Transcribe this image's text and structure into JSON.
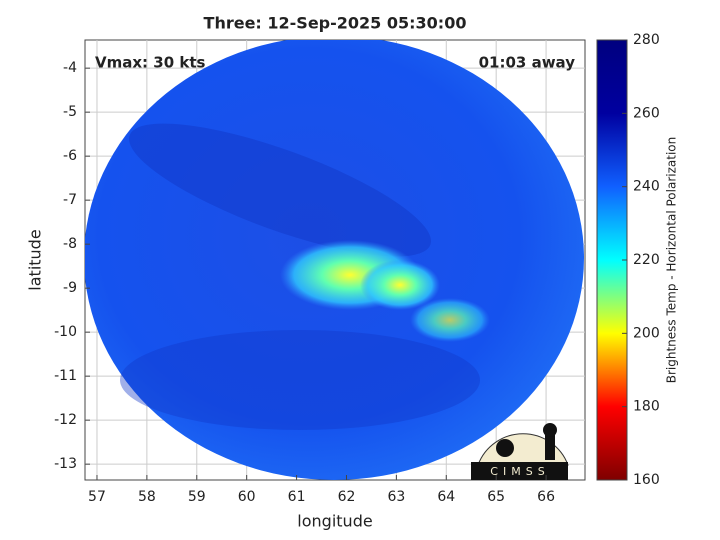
{
  "chart_data": {
    "type": "map",
    "title": "Three: 12-Sep-2025 05:30:00",
    "annotations": [
      "Vmax: 30 kts",
      "01:03 away"
    ],
    "x_label": "longitude",
    "y_label": "latitude",
    "xlim": [
      56.76,
      66.78
    ],
    "xticks": [
      57,
      58,
      59,
      60,
      61,
      62,
      63,
      64,
      65,
      66
    ],
    "ylim": [
      -13.36,
      -3.36
    ],
    "yticks": [
      -13,
      -12,
      -11,
      -10,
      -9,
      -8,
      -7,
      -6,
      -5,
      -4
    ],
    "grid": true,
    "colorbar": {
      "label": "Brightness Temp - Horizontal Polarization",
      "lim": [
        160,
        280
      ],
      "ticks": [
        160,
        180,
        200,
        220,
        240,
        260,
        280
      ],
      "colors": [
        "#7f0000",
        "#ff0000",
        "#ffff00",
        "#00ffff",
        "#1060ff",
        "#0000a0",
        "#00007f"
      ]
    },
    "logo": "CIMSS"
  }
}
